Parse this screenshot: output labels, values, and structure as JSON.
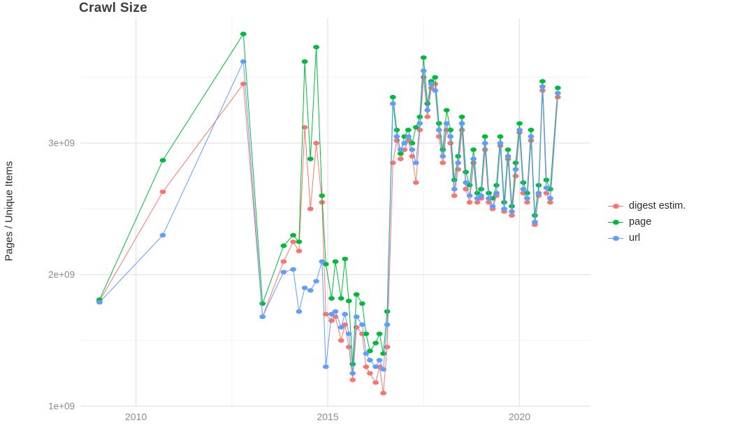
{
  "chart_data": {
    "type": "line",
    "title": "Crawl Size",
    "xlabel": "",
    "ylabel": "Pages / Unique Items",
    "grid": true,
    "legend_position": "right",
    "xlim": [
      2008.55,
      2021.85
    ],
    "ylim": [
      1000000000.0,
      3950000000.0
    ],
    "x_ticks": [
      2010,
      2015,
      2020
    ],
    "x_tick_labels": [
      "2010",
      "2015",
      "2020"
    ],
    "y_ticks": [
      1000000000.0,
      2000000000.0,
      3000000000.0
    ],
    "y_tick_labels": [
      "1e+09",
      "2e+09",
      "3e+09"
    ],
    "x": [
      2009.05,
      2010.7,
      2012.8,
      2013.3,
      2013.85,
      2014.1,
      2014.25,
      2014.4,
      2014.55,
      2014.7,
      2014.85,
      2014.95,
      2015.1,
      2015.2,
      2015.35,
      2015.45,
      2015.55,
      2015.65,
      2015.75,
      2015.9,
      2016.0,
      2016.1,
      2016.25,
      2016.35,
      2016.45,
      2016.55,
      2016.7,
      2016.8,
      2016.9,
      2017.0,
      2017.1,
      2017.2,
      2017.3,
      2017.4,
      2017.5,
      2017.6,
      2017.7,
      2017.8,
      2017.9,
      2018.0,
      2018.1,
      2018.2,
      2018.3,
      2018.4,
      2018.5,
      2018.6,
      2018.7,
      2018.8,
      2018.9,
      2019.0,
      2019.1,
      2019.2,
      2019.3,
      2019.4,
      2019.5,
      2019.6,
      2019.7,
      2019.8,
      2019.9,
      2020.0,
      2020.1,
      2020.2,
      2020.3,
      2020.4,
      2020.5,
      2020.6,
      2020.7,
      2020.8,
      2021.0
    ],
    "series": [
      {
        "name": "digest estim.",
        "color": "#F8766D",
        "values": [
          1800000000.0,
          2630000000.0,
          3450000000.0,
          1680000000.0,
          2100000000.0,
          2250000000.0,
          2180000000.0,
          3120000000.0,
          2500000000.0,
          3000000000.0,
          2550000000.0,
          1700000000.0,
          1650000000.0,
          1680000000.0,
          1500000000.0,
          1620000000.0,
          1450000000.0,
          1200000000.0,
          1600000000.0,
          1550000000.0,
          1300000000.0,
          1250000000.0,
          1180000000.0,
          1300000000.0,
          1100000000.0,
          1450000000.0,
          2850000000.0,
          3020000000.0,
          2880000000.0,
          2950000000.0,
          3020000000.0,
          2900000000.0,
          2700000000.0,
          3100000000.0,
          3500000000.0,
          3200000000.0,
          3420000000.0,
          3450000000.0,
          3050000000.0,
          2850000000.0,
          3100000000.0,
          3000000000.0,
          2600000000.0,
          2800000000.0,
          3100000000.0,
          2650000000.0,
          2550000000.0,
          2850000000.0,
          2550000000.0,
          2580000000.0,
          2950000000.0,
          2550000000.0,
          2500000000.0,
          2600000000.0,
          2980000000.0,
          2480000000.0,
          2880000000.0,
          2450000000.0,
          2750000000.0,
          3080000000.0,
          2620000000.0,
          2550000000.0,
          3020000000.0,
          2380000000.0,
          2600000000.0,
          3400000000.0,
          2620000000.0,
          2550000000.0,
          3350000000.0
        ]
      },
      {
        "name": "page",
        "color": "#00BA38",
        "values": [
          1810000000.0,
          2870000000.0,
          3830000000.0,
          1780000000.0,
          2220000000.0,
          2300000000.0,
          2250000000.0,
          3620000000.0,
          2880000000.0,
          3730000000.0,
          2600000000.0,
          2080000000.0,
          1820000000.0,
          2100000000.0,
          1820000000.0,
          2120000000.0,
          1800000000.0,
          1320000000.0,
          1850000000.0,
          1780000000.0,
          1550000000.0,
          1420000000.0,
          1480000000.0,
          1550000000.0,
          1400000000.0,
          1720000000.0,
          3350000000.0,
          3100000000.0,
          2920000000.0,
          3050000000.0,
          3100000000.0,
          3000000000.0,
          3120000000.0,
          3200000000.0,
          3650000000.0,
          3300000000.0,
          3470000000.0,
          3500000000.0,
          3150000000.0,
          2950000000.0,
          3250000000.0,
          3100000000.0,
          2720000000.0,
          2900000000.0,
          3200000000.0,
          2780000000.0,
          2680000000.0,
          2950000000.0,
          2620000000.0,
          2650000000.0,
          3050000000.0,
          2620000000.0,
          2580000000.0,
          2680000000.0,
          3050000000.0,
          2550000000.0,
          2950000000.0,
          2520000000.0,
          2850000000.0,
          3150000000.0,
          2700000000.0,
          2620000000.0,
          3100000000.0,
          2450000000.0,
          2680000000.0,
          3470000000.0,
          2720000000.0,
          2650000000.0,
          3420000000.0
        ]
      },
      {
        "name": "url",
        "color": "#619CFF",
        "values": [
          1790000000.0,
          2300000000.0,
          3620000000.0,
          1680000000.0,
          2020000000.0,
          2040000000.0,
          1720000000.0,
          1900000000.0,
          1880000000.0,
          1950000000.0,
          2100000000.0,
          1300000000.0,
          1700000000.0,
          1720000000.0,
          1600000000.0,
          1700000000.0,
          1550000000.0,
          1250000000.0,
          1680000000.0,
          1620000000.0,
          1400000000.0,
          1350000000.0,
          1300000000.0,
          1350000000.0,
          1280000000.0,
          1620000000.0,
          3300000000.0,
          3050000000.0,
          2950000000.0,
          3000000000.0,
          3050000000.0,
          2950000000.0,
          2850000000.0,
          3150000000.0,
          3550000000.0,
          3250000000.0,
          3450000000.0,
          3400000000.0,
          3100000000.0,
          2900000000.0,
          3150000000.0,
          3050000000.0,
          2650000000.0,
          2850000000.0,
          3150000000.0,
          2700000000.0,
          2600000000.0,
          2880000000.0,
          2580000000.0,
          2600000000.0,
          3000000000.0,
          2580000000.0,
          2520000000.0,
          2620000000.0,
          3000000000.0,
          2500000000.0,
          2900000000.0,
          2480000000.0,
          2800000000.0,
          3100000000.0,
          2650000000.0,
          2580000000.0,
          3050000000.0,
          2400000000.0,
          2620000000.0,
          3430000000.0,
          2660000000.0,
          2580000000.0,
          3380000000.0
        ]
      }
    ]
  },
  "legend": {
    "items": [
      {
        "label": "digest estim.",
        "color": "#F8766D"
      },
      {
        "label": "page",
        "color": "#00BA38"
      },
      {
        "label": "url",
        "color": "#619CFF"
      }
    ]
  },
  "style": {
    "grid_major_color": "#E2E2E2",
    "grid_minor_color": "#F0F0F0",
    "tick_label_color": "#8a8a8a",
    "title_color": "#3f3f3f"
  }
}
